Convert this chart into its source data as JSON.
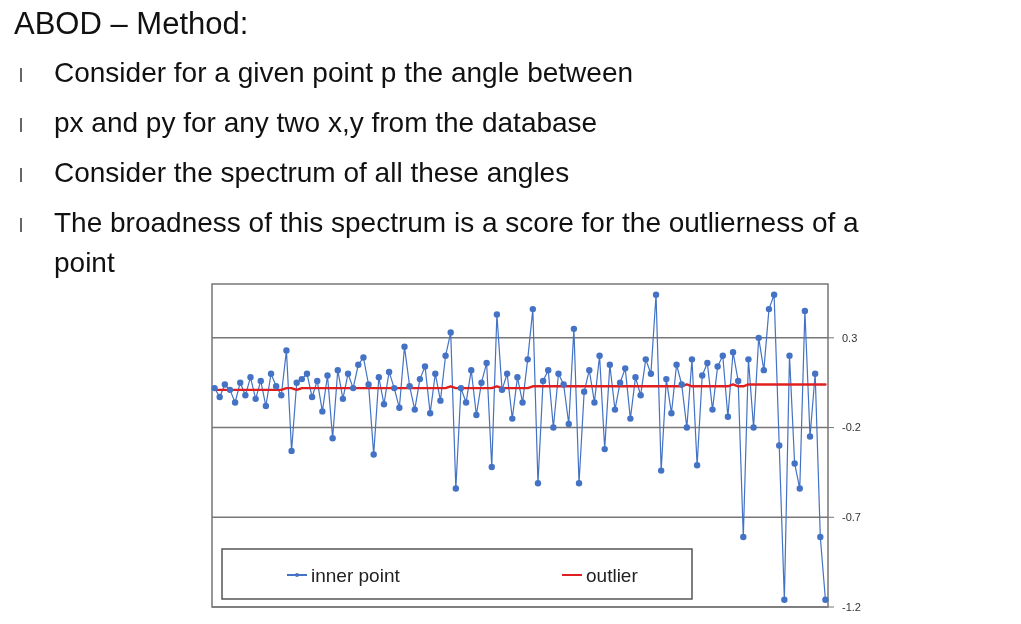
{
  "chart_data": {
    "type": "line",
    "title": "ABOD – Method:",
    "annotations": [
      "Consider for a given point p the angle between",
      "px and py for any two x,y from the database",
      "Consider the spectrum of all these angles",
      "The broadness of this spectrum is a score for the outlierness of a point"
    ],
    "categories": [
      null,
      null,
      null,
      null,
      null,
      null,
      null,
      null,
      null,
      null,
      null,
      null,
      null,
      null,
      null,
      null,
      null,
      null,
      null,
      null,
      null,
      null,
      null,
      null,
      null,
      null,
      null,
      null,
      null,
      null,
      null,
      null,
      null,
      null,
      null,
      null,
      null,
      null,
      null,
      null,
      null,
      null,
      null,
      null,
      null,
      null,
      null,
      null,
      null,
      null,
      null,
      null,
      null,
      null,
      null,
      null,
      null,
      null,
      null,
      null,
      null,
      null,
      null,
      null,
      null,
      null,
      null,
      null,
      null,
      null,
      null,
      null,
      null,
      null,
      null,
      null,
      null,
      null,
      null,
      null,
      null,
      null,
      null,
      null,
      null,
      null,
      null,
      null,
      null,
      null,
      null,
      null,
      null,
      null,
      null,
      null,
      null,
      null,
      null,
      null,
      null,
      null,
      null,
      null,
      null,
      null,
      null,
      null,
      null,
      null,
      null,
      null,
      null,
      null,
      null,
      null,
      null,
      null,
      null,
      null
    ],
    "series": [
      {
        "name": "inner point",
        "color": "#4472c4",
        "values": [
          0.02,
          -0.03,
          0.04,
          0.01,
          -0.06,
          0.05,
          -0.02,
          0.08,
          -0.04,
          0.06,
          -0.08,
          0.1,
          0.03,
          -0.02,
          0.23,
          -0.33,
          0.05,
          0.07,
          0.1,
          -0.03,
          0.06,
          -0.11,
          0.09,
          -0.26,
          0.12,
          -0.04,
          0.1,
          0.02,
          0.15,
          0.19,
          0.04,
          -0.35,
          0.08,
          -0.07,
          0.11,
          0.02,
          -0.09,
          0.25,
          0.03,
          -0.1,
          0.07,
          0.14,
          -0.12,
          0.1,
          -0.05,
          0.2,
          0.33,
          -0.54,
          0.02,
          -0.06,
          0.12,
          -0.13,
          0.05,
          0.16,
          -0.42,
          0.43,
          0.01,
          0.1,
          -0.15,
          0.08,
          -0.06,
          0.18,
          0.46,
          -0.51,
          0.06,
          0.12,
          -0.2,
          0.1,
          0.04,
          -0.18,
          0.35,
          -0.51,
          0.0,
          0.12,
          -0.06,
          0.2,
          -0.32,
          0.15,
          -0.1,
          0.05,
          0.13,
          -0.15,
          0.08,
          -0.02,
          0.18,
          0.1,
          0.54,
          -0.44,
          0.07,
          -0.12,
          0.15,
          0.04,
          -0.2,
          0.18,
          -0.41,
          0.09,
          0.16,
          -0.1,
          0.14,
          0.2,
          -0.14,
          0.22,
          0.06,
          -0.81,
          0.18,
          -0.2,
          0.3,
          0.12,
          0.46,
          0.54,
          -0.3,
          -1.16,
          0.2,
          -0.4,
          -0.54,
          0.45,
          -0.25,
          0.1,
          -0.81,
          -1.16
        ]
      },
      {
        "name": "outlier",
        "color": "#e02020",
        "marker": "none",
        "values": [
          0.01,
          0.01,
          0.01,
          0.01,
          0.01,
          0.01,
          0.01,
          0.01,
          0.01,
          0.01,
          0.01,
          0.01,
          0.01,
          0.01,
          0.02,
          0.02,
          0.01,
          0.02,
          0.02,
          0.02,
          0.02,
          0.02,
          0.02,
          0.02,
          0.02,
          0.02,
          0.02,
          0.02,
          0.02,
          0.02,
          0.02,
          0.02,
          0.02,
          0.02,
          0.02,
          0.02,
          0.02,
          0.02,
          0.02,
          0.02,
          0.02,
          0.02,
          0.02,
          0.02,
          0.02,
          0.02,
          0.03,
          0.02,
          0.02,
          0.02,
          0.02,
          0.02,
          0.02,
          0.02,
          0.02,
          0.03,
          0.02,
          0.02,
          0.02,
          0.02,
          0.02,
          0.02,
          0.03,
          0.03,
          0.03,
          0.03,
          0.03,
          0.03,
          0.03,
          0.03,
          0.03,
          0.03,
          0.03,
          0.03,
          0.03,
          0.03,
          0.03,
          0.03,
          0.03,
          0.03,
          0.03,
          0.03,
          0.03,
          0.03,
          0.03,
          0.03,
          0.03,
          0.03,
          0.03,
          0.03,
          0.03,
          0.03,
          0.04,
          0.03,
          0.03,
          0.03,
          0.03,
          0.03,
          0.03,
          0.03,
          0.03,
          0.04,
          0.03,
          0.03,
          0.04,
          0.04,
          0.04,
          0.04,
          0.04,
          0.04,
          0.04,
          0.04,
          0.04,
          0.04,
          0.04,
          0.04,
          0.04,
          0.04,
          0.04,
          0.04
        ]
      }
    ],
    "ylim": [
      -1.2,
      0.6
    ],
    "yticks": [
      0.3,
      -0.2,
      -0.7,
      -1.2
    ],
    "grid": "y",
    "legend": "bottom",
    "marker": "circle",
    "line_style": "solid"
  }
}
